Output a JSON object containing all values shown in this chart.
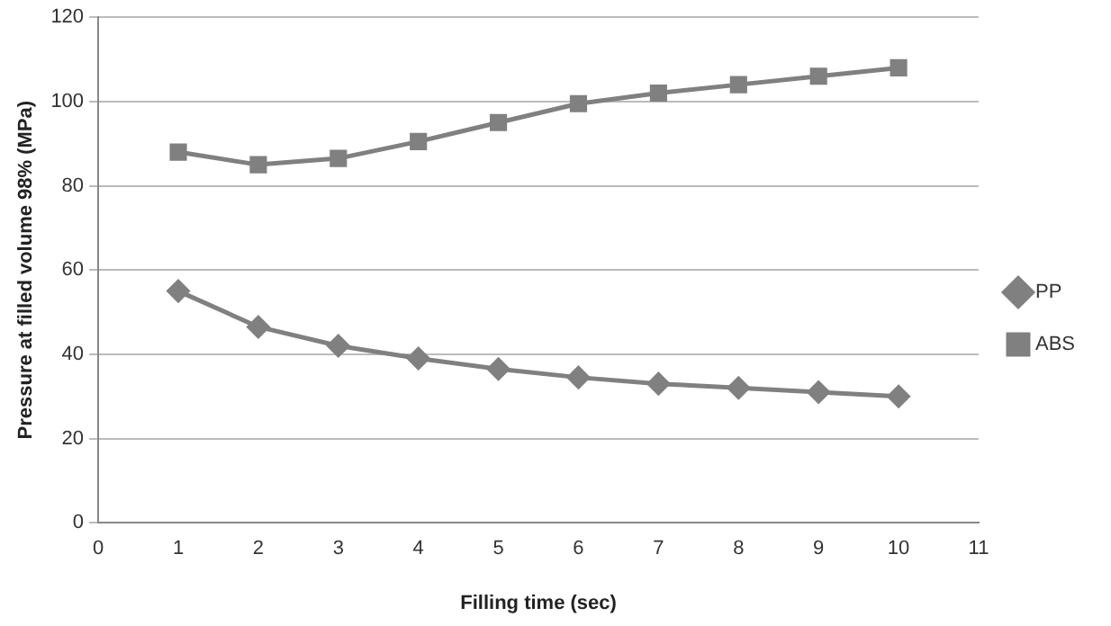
{
  "chart_data": {
    "type": "line",
    "xlabel": "Filling time (sec)",
    "ylabel": "Pressure at filled volume 98% (MPa)",
    "x": [
      1,
      2,
      3,
      4,
      5,
      6,
      7,
      8,
      9,
      10
    ],
    "series": [
      {
        "name": "PP",
        "color": "#808080",
        "marker": "diamond",
        "values": [
          55,
          46.5,
          42,
          39,
          36.5,
          34.5,
          33,
          32,
          31,
          30
        ]
      },
      {
        "name": "ABS",
        "color": "#808080",
        "marker": "square",
        "values": [
          88,
          85,
          86.5,
          90.5,
          95,
          99.5,
          102,
          104,
          106,
          108
        ]
      }
    ],
    "xlim": [
      0,
      11
    ],
    "xticks": [
      0,
      1,
      2,
      3,
      4,
      5,
      6,
      7,
      8,
      9,
      10,
      11
    ],
    "ylim": [
      0,
      120
    ],
    "yticks": [
      0,
      20,
      40,
      60,
      80,
      100,
      120
    ],
    "grid": "y",
    "legend": "right"
  }
}
